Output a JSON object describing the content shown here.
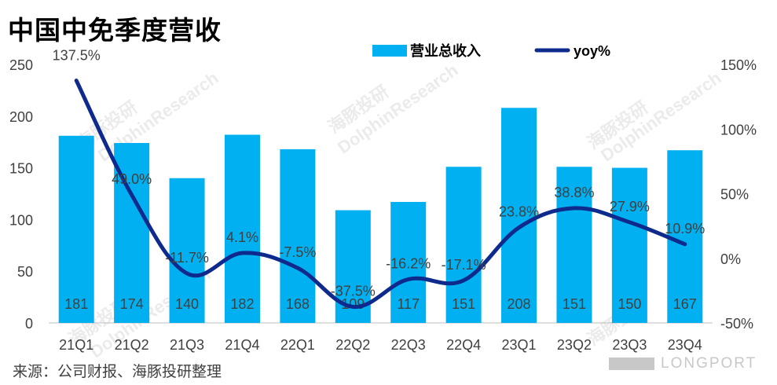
{
  "title": "中国中免季度营收",
  "source": "来源：公司财报、海豚投研整理",
  "watermarks": [
    "海豚投研",
    "DolphinResearch",
    "LONGPORT"
  ],
  "colors": {
    "bar": "#00b0f0",
    "line": "#0d2a8c",
    "text": "#404040",
    "axis": "#bfbfbf"
  },
  "chart_data": {
    "type": "bar+line",
    "categories": [
      "21Q1",
      "21Q2",
      "21Q3",
      "21Q4",
      "22Q1",
      "22Q2",
      "22Q3",
      "22Q4",
      "23Q1",
      "23Q2",
      "23Q3",
      "23Q4"
    ],
    "series": [
      {
        "name": "营业总收入",
        "type": "bar",
        "axis": "left",
        "values": [
          181,
          174,
          140,
          182,
          168,
          109,
          117,
          151,
          208,
          151,
          150,
          167
        ],
        "labels": [
          "181",
          "174",
          "140",
          "182",
          "168",
          "109",
          "117",
          "151",
          "208",
          "151",
          "150",
          "167"
        ]
      },
      {
        "name": "yoy%",
        "type": "line",
        "axis": "right",
        "values": [
          137.5,
          49.0,
          -11.7,
          4.1,
          -7.5,
          -37.5,
          -16.2,
          -17.1,
          23.8,
          38.8,
          27.9,
          10.9
        ],
        "labels": [
          "137.5%",
          "49.0%",
          "-11.7%",
          "4.1%",
          "-7.5%",
          "-37.5%",
          "-16.2%",
          "-17.1%",
          "23.8%",
          "38.8%",
          "27.9%",
          "10.9%"
        ]
      }
    ],
    "y_left": {
      "min": 0,
      "max": 250,
      "ticks": [
        "0",
        "50",
        "100",
        "150",
        "200",
        "250"
      ]
    },
    "y_right": {
      "min": -50,
      "max": 150,
      "ticks": [
        "-50%",
        "0%",
        "50%",
        "100%",
        "150%"
      ]
    },
    "legend_position": "top"
  }
}
